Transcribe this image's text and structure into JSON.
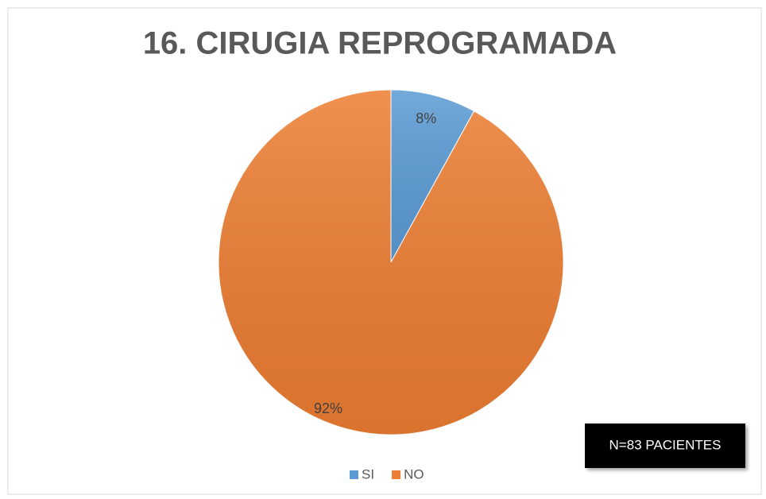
{
  "chart_data": {
    "type": "pie",
    "title": "16. CIRUGIA REPROGRAMADA",
    "categories": [
      "SI",
      "NO"
    ],
    "values": [
      8,
      92
    ],
    "value_labels": [
      "8%",
      "92%"
    ],
    "colors": [
      "#5b9bd5",
      "#ed7d31"
    ],
    "legend": "bottom",
    "annotation": "N=83 PACIENTES"
  }
}
